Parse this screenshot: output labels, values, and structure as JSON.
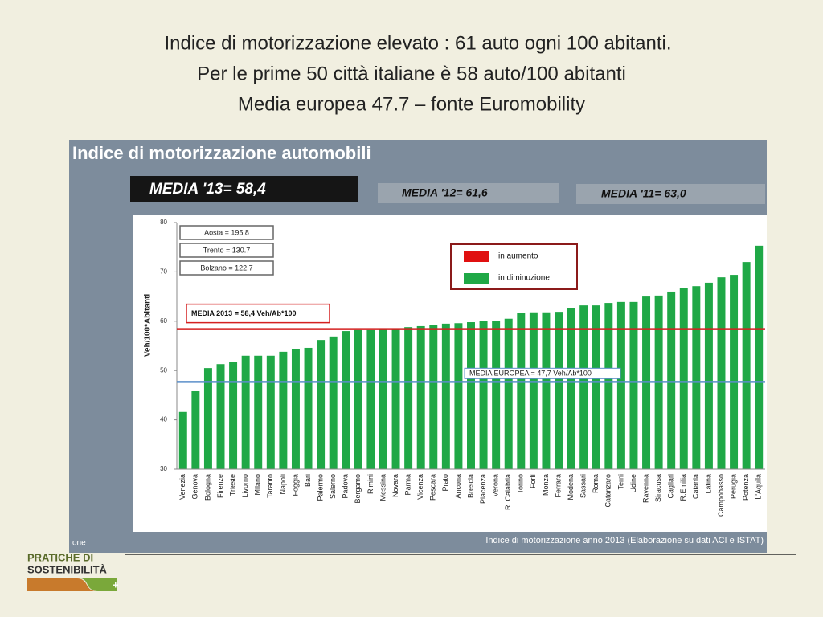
{
  "slide": {
    "title_lines": [
      "Indice di motorizzazione elevato : 61 auto ogni 100 abitanti.",
      "Per le prime 50 città italiane è 58 auto/100 abitanti",
      "Media europea 47.7 – fonte Euromobility"
    ],
    "logo": [
      "PRATICHE DI",
      "SOSTENIBILITÀ",
      "+"
    ]
  },
  "chart_data": {
    "type": "bar",
    "title": "Indice di motorizzazione automobili",
    "badges": [
      "MEDIA  '13= 58,4",
      "MEDIA  '12= 61,6",
      "MEDIA  '11= 63,0"
    ],
    "ylabel": "Veh/100*Abitanti",
    "categories": [
      "Venezia",
      "Genova",
      "Bologna",
      "Firenze",
      "Trieste",
      "Livorno",
      "Milano",
      "Taranto",
      "Napoli",
      "Foggia",
      "Bari",
      "Palermo",
      "Salerno",
      "Padova",
      "Bergamo",
      "Rimini",
      "Messina",
      "Novara",
      "Parma",
      "Vicenza",
      "Pescara",
      "Prato",
      "Ancona",
      "Brescia",
      "Piacenza",
      "Verona",
      "R. Calabria",
      "Torino",
      "Forlì",
      "Monza",
      "Ferrara",
      "Modena",
      "Sassari",
      "Roma",
      "Catanzaro",
      "Terni",
      "Udine",
      "Ravenna",
      "Siracusa",
      "Cagliari",
      "R.Emilia",
      "Catania",
      "Latina",
      "Campobasso",
      "Perugia",
      "Potenza",
      "L'Aquila"
    ],
    "values": [
      41.6,
      45.8,
      50.5,
      51.3,
      51.7,
      53,
      53,
      53,
      53.8,
      54.4,
      54.6,
      56.2,
      56.9,
      58,
      58.2,
      58.2,
      58.3,
      58.5,
      58.8,
      59,
      59.3,
      59.5,
      59.6,
      59.8,
      60,
      60.1,
      60.5,
      61.6,
      61.8,
      61.8,
      61.9,
      62.7,
      63.2,
      63.2,
      63.7,
      63.9,
      63.9,
      65,
      65.2,
      66,
      66.8,
      67.1,
      67.8,
      68.9,
      69.4,
      72,
      75.3
    ],
    "color": "#1fa846",
    "ylim": [
      30,
      80
    ],
    "yticks": [
      30,
      40,
      50,
      60,
      70,
      80
    ],
    "reference_lines": [
      {
        "label": "MEDIA 2013 = 58,4 Veh/Ab*100",
        "value": 58.4,
        "color": "#d42020"
      },
      {
        "label": "MEDIA EUROPEA = 47,7 Veh/Ab*100",
        "value": 47.7,
        "color": "#5b8fc9"
      }
    ],
    "legend": [
      {
        "name": "in aumento",
        "color": "#e01010"
      },
      {
        "name": "in diminuzione",
        "color": "#1fa846"
      }
    ],
    "annotations": [
      "Aosta = 195.8",
      "Trento = 130.7",
      "Bolzano = 122.7"
    ],
    "footer": "Indice di motorizzazione anno 2013 (Elaborazione su dati ACI e ISTAT)",
    "fragment": "one"
  }
}
